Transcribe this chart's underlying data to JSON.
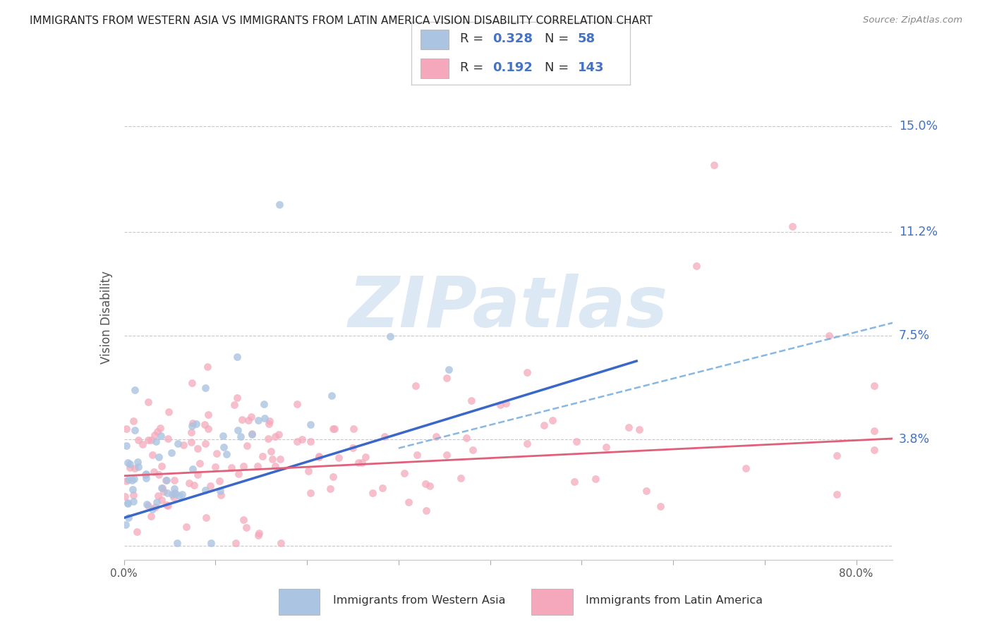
{
  "title": "IMMIGRANTS FROM WESTERN ASIA VS IMMIGRANTS FROM LATIN AMERICA VISION DISABILITY CORRELATION CHART",
  "source": "Source: ZipAtlas.com",
  "ylabel": "Vision Disability",
  "yticks": [
    0.0,
    0.038,
    0.075,
    0.112,
    0.15
  ],
  "ytick_labels": [
    "",
    "3.8%",
    "7.5%",
    "11.2%",
    "15.0%"
  ],
  "xlim": [
    0.0,
    0.84
  ],
  "ylim": [
    -0.005,
    0.168
  ],
  "r_western": 0.328,
  "n_western": 58,
  "r_latin": 0.192,
  "n_latin": 143,
  "color_western": "#aac4e2",
  "color_latin": "#f5a8bc",
  "color_line_western": "#3a68c8",
  "color_line_latin": "#e0607a",
  "color_dashed": "#7ab0e0",
  "color_text_blue": "#4472c4",
  "color_grid": "#c8c8c8",
  "watermark_color": "#dde8f5",
  "watermark_text": "ZIPatlas"
}
